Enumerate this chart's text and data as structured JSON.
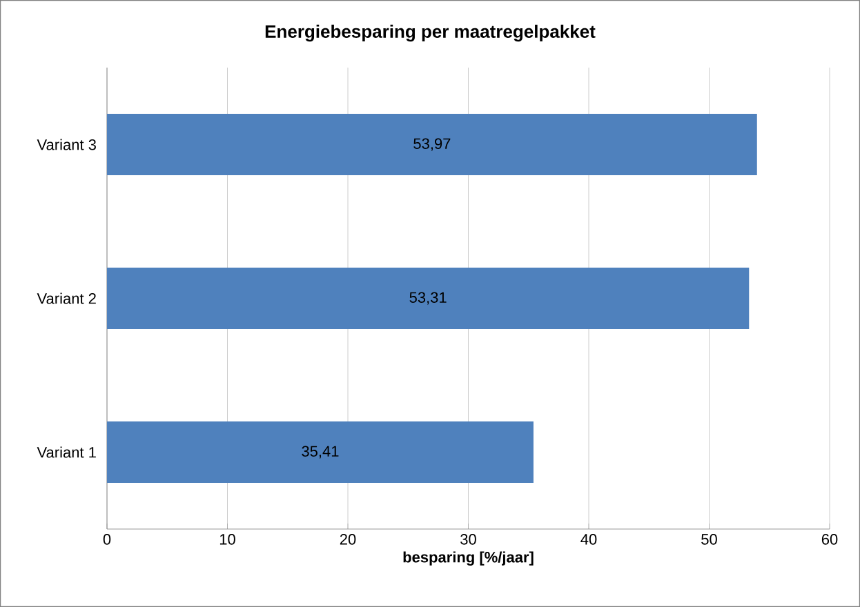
{
  "chart_data": {
    "type": "bar",
    "orientation": "horizontal",
    "title": "Energiebesparing per maatregelpakket",
    "xlabel": "besparing [%/jaar]",
    "categories": [
      "Variant 3",
      "Variant 2",
      "Variant 1"
    ],
    "values": [
      53.97,
      53.31,
      35.41
    ],
    "value_labels": [
      "53,97",
      "53,31",
      "35,41"
    ],
    "color": "#4f81bd",
    "xlim": [
      0,
      60
    ],
    "xticks": [
      0,
      10,
      20,
      30,
      40,
      50,
      60
    ],
    "grid": "x"
  }
}
